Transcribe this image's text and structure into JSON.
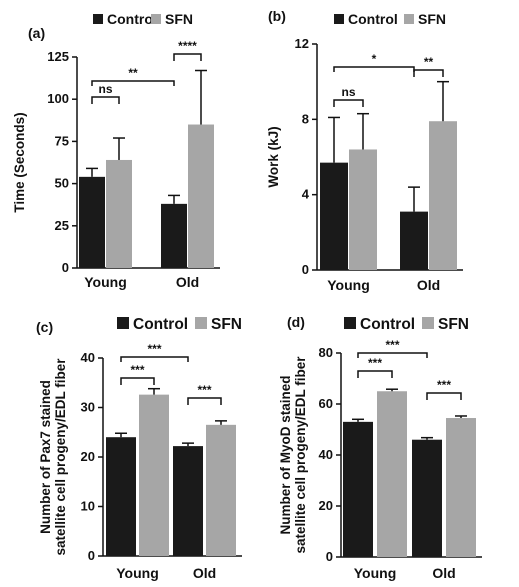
{
  "chart_data": [
    {
      "panel_label": "(a)",
      "type": "bar",
      "ylabel": "Time (Seconds)",
      "categories": [
        "Young",
        "Old"
      ],
      "series": [
        {
          "name": "Control",
          "color": "#1a1a1a",
          "values": [
            54,
            38
          ],
          "errors": [
            5,
            5
          ]
        },
        {
          "name": "SFN",
          "color": "#a6a6a6",
          "values": [
            64,
            85
          ],
          "errors": [
            13,
            32
          ]
        }
      ],
      "ylim": [
        0,
        125
      ],
      "yticks": [
        0,
        25,
        50,
        75,
        100,
        125
      ],
      "legend_position": "top",
      "annotations": [
        {
          "text": "ns",
          "from": [
            0,
            0
          ],
          "to": [
            0,
            1
          ]
        },
        {
          "text": "**",
          "from": [
            0,
            0
          ],
          "to": [
            1,
            0
          ]
        },
        {
          "text": "****",
          "from": [
            1,
            0
          ],
          "to": [
            1,
            1
          ]
        }
      ]
    },
    {
      "panel_label": "(b)",
      "type": "bar",
      "ylabel": "Work (kJ)",
      "categories": [
        "Young",
        "Old"
      ],
      "series": [
        {
          "name": "Control",
          "color": "#1a1a1a",
          "values": [
            5.7,
            3.1
          ],
          "errors": [
            2.4,
            1.3
          ]
        },
        {
          "name": "SFN",
          "color": "#a6a6a6",
          "values": [
            6.4,
            7.9
          ],
          "errors": [
            1.9,
            2.1
          ]
        }
      ],
      "ylim": [
        0,
        12
      ],
      "yticks": [
        0,
        4,
        8,
        12
      ],
      "legend_position": "top",
      "annotations": [
        {
          "text": "ns",
          "from": [
            0,
            0
          ],
          "to": [
            0,
            1
          ]
        },
        {
          "text": "*",
          "from": [
            0,
            0
          ],
          "to": [
            1,
            0
          ]
        },
        {
          "text": "**",
          "from": [
            1,
            0
          ],
          "to": [
            1,
            1
          ]
        }
      ]
    },
    {
      "panel_label": "(c)",
      "type": "bar",
      "ylabel": [
        "Number of Pax7 stained",
        "satellite cell progeny/EDL fiber"
      ],
      "categories": [
        "Young",
        "Old"
      ],
      "series": [
        {
          "name": "Control",
          "color": "#1a1a1a",
          "values": [
            24,
            22.2
          ],
          "errors": [
            0.8,
            0.6
          ]
        },
        {
          "name": "SFN",
          "color": "#a6a6a6",
          "values": [
            32.6,
            26.5
          ],
          "errors": [
            1.2,
            0.8
          ]
        }
      ],
      "ylim": [
        0,
        40
      ],
      "yticks": [
        0,
        10,
        20,
        30,
        40
      ],
      "legend_position": "top",
      "annotations": [
        {
          "text": "***",
          "from": [
            0,
            0
          ],
          "to": [
            0,
            1
          ]
        },
        {
          "text": "***",
          "from": [
            0,
            0
          ],
          "to": [
            1,
            0
          ]
        },
        {
          "text": "***",
          "from": [
            1,
            0
          ],
          "to": [
            1,
            1
          ]
        }
      ]
    },
    {
      "panel_label": "(d)",
      "type": "bar",
      "ylabel": [
        "Number of MyoD stained",
        "satellite cell progeny/EDL fiber"
      ],
      "categories": [
        "Young",
        "Old"
      ],
      "series": [
        {
          "name": "Control",
          "color": "#1a1a1a",
          "values": [
            53,
            46
          ],
          "errors": [
            1,
            0.8
          ]
        },
        {
          "name": "SFN",
          "color": "#a6a6a6",
          "values": [
            65,
            54.5
          ],
          "errors": [
            0.8,
            0.8
          ]
        }
      ],
      "ylim": [
        0,
        80
      ],
      "yticks": [
        0,
        20,
        40,
        60,
        80
      ],
      "legend_position": "top",
      "annotations": [
        {
          "text": "***",
          "from": [
            0,
            0
          ],
          "to": [
            0,
            1
          ]
        },
        {
          "text": "***",
          "from": [
            0,
            0
          ],
          "to": [
            1,
            0
          ]
        },
        {
          "text": "***",
          "from": [
            1,
            0
          ],
          "to": [
            1,
            1
          ]
        }
      ]
    }
  ]
}
